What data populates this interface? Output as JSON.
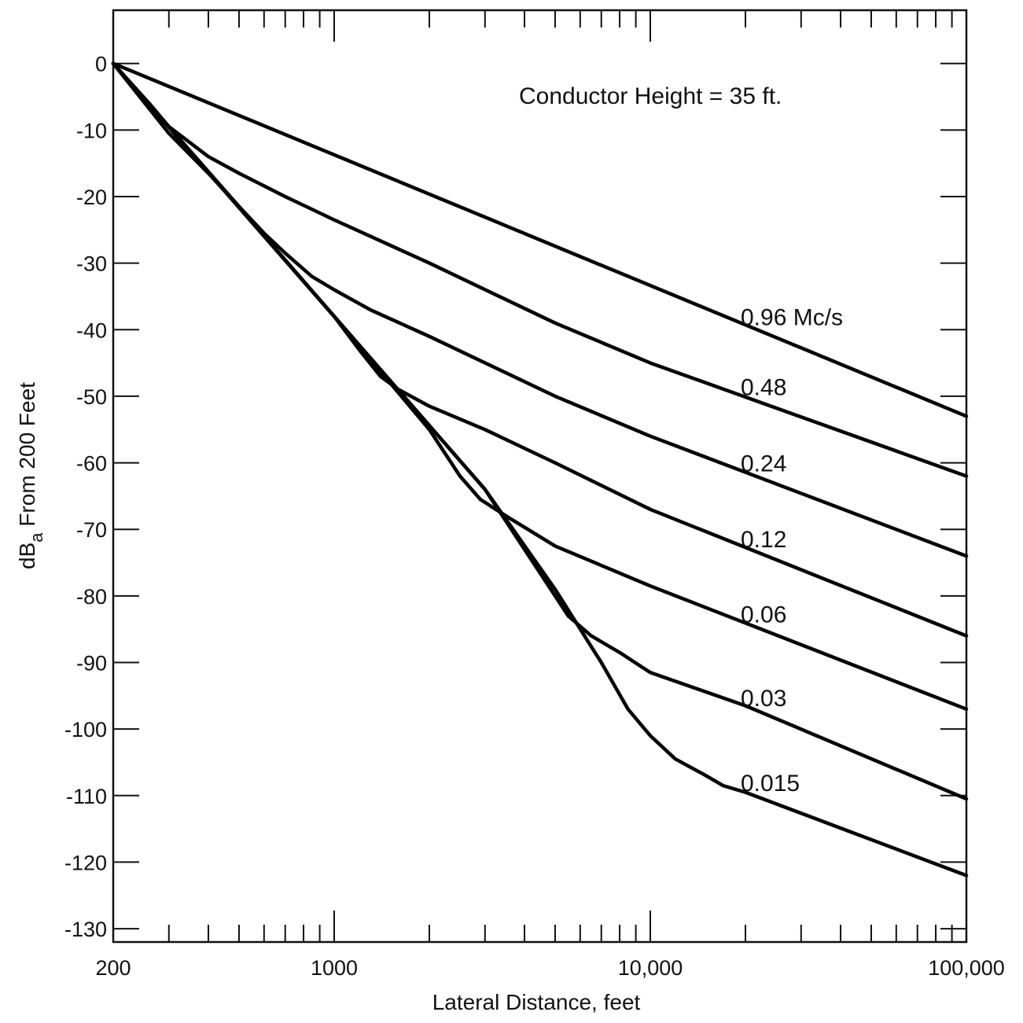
{
  "chart_data": {
    "type": "line",
    "title": "",
    "annotation": "Conductor Height = 35 ft.",
    "xlabel": "Lateral Distance,  feet",
    "ylabel": "dB",
    "ylabel_subscript": "a",
    "ylabel_suffix": " From 200 Feet",
    "x_scale": "log",
    "xlim": [
      200,
      100000
    ],
    "ylim": [
      -132,
      8
    ],
    "x_tick_labels": [
      {
        "value": 200,
        "label": "200"
      },
      {
        "value": 1000,
        "label": "1000"
      },
      {
        "value": 10000,
        "label": "10,000"
      },
      {
        "value": 100000,
        "label": "100,000"
      }
    ],
    "y_ticks": [
      0,
      -10,
      -20,
      -30,
      -40,
      -50,
      -60,
      -70,
      -80,
      -90,
      -100,
      -110,
      -120,
      -130
    ],
    "y_tick_labels": [
      "0",
      "-10",
      "-20",
      "-30",
      "-40",
      "-50",
      "-60",
      "-70",
      "-80",
      "-90",
      "-100",
      "-110",
      "-120",
      "-130"
    ],
    "line_color": "#000000",
    "grid": false,
    "series": [
      {
        "name": "0.96 Mc/s",
        "points": [
          [
            200,
            0
          ],
          [
            100000,
            -53
          ]
        ]
      },
      {
        "name": "0.48",
        "points": [
          [
            200,
            0
          ],
          [
            260,
            -6
          ],
          [
            300,
            -9.5
          ],
          [
            400,
            -14
          ],
          [
            500,
            -16.5
          ],
          [
            700,
            -20
          ],
          [
            1000,
            -23.5
          ],
          [
            2000,
            -30
          ],
          [
            5000,
            -39
          ],
          [
            10000,
            -45
          ],
          [
            100000,
            -62
          ]
        ]
      },
      {
        "name": "0.24",
        "points": [
          [
            200,
            0
          ],
          [
            300,
            -10.5
          ],
          [
            400,
            -16.5
          ],
          [
            500,
            -21.5
          ],
          [
            600,
            -25.5
          ],
          [
            700,
            -28.5
          ],
          [
            850,
            -32
          ],
          [
            1000,
            -34
          ],
          [
            1300,
            -37
          ],
          [
            2000,
            -41
          ],
          [
            5000,
            -50
          ],
          [
            10000,
            -56
          ],
          [
            100000,
            -74
          ]
        ]
      },
      {
        "name": "0.12",
        "points": [
          [
            200,
            0
          ],
          [
            500,
            -21.5
          ],
          [
            1000,
            -38
          ],
          [
            1200,
            -43
          ],
          [
            1400,
            -47
          ],
          [
            1600,
            -49
          ],
          [
            2000,
            -51.5
          ],
          [
            3000,
            -55
          ],
          [
            5000,
            -60
          ],
          [
            10000,
            -67
          ],
          [
            100000,
            -86
          ]
        ]
      },
      {
        "name": "0.06",
        "points": [
          [
            200,
            0
          ],
          [
            1000,
            -38
          ],
          [
            2000,
            -55
          ],
          [
            2500,
            -62
          ],
          [
            2900,
            -65.5
          ],
          [
            3500,
            -68
          ],
          [
            5000,
            -72.5
          ],
          [
            10000,
            -78.5
          ],
          [
            100000,
            -97
          ]
        ]
      },
      {
        "name": "0.03",
        "points": [
          [
            200,
            0
          ],
          [
            1000,
            -38
          ],
          [
            3000,
            -64
          ],
          [
            5000,
            -80
          ],
          [
            5500,
            -83
          ],
          [
            6500,
            -86
          ],
          [
            8000,
            -88.5
          ],
          [
            10000,
            -91.5
          ],
          [
            20000,
            -96.5
          ],
          [
            100000,
            -110.5
          ]
        ]
      },
      {
        "name": "0.015",
        "points": [
          [
            200,
            0
          ],
          [
            1000,
            -38
          ],
          [
            3000,
            -64
          ],
          [
            5000,
            -79
          ],
          [
            7000,
            -90
          ],
          [
            8500,
            -97
          ],
          [
            10000,
            -101
          ],
          [
            12000,
            -104.5
          ],
          [
            15000,
            -107
          ],
          [
            17000,
            -108.5
          ],
          [
            20000,
            -109.5
          ],
          [
            100000,
            -122
          ]
        ]
      }
    ]
  }
}
